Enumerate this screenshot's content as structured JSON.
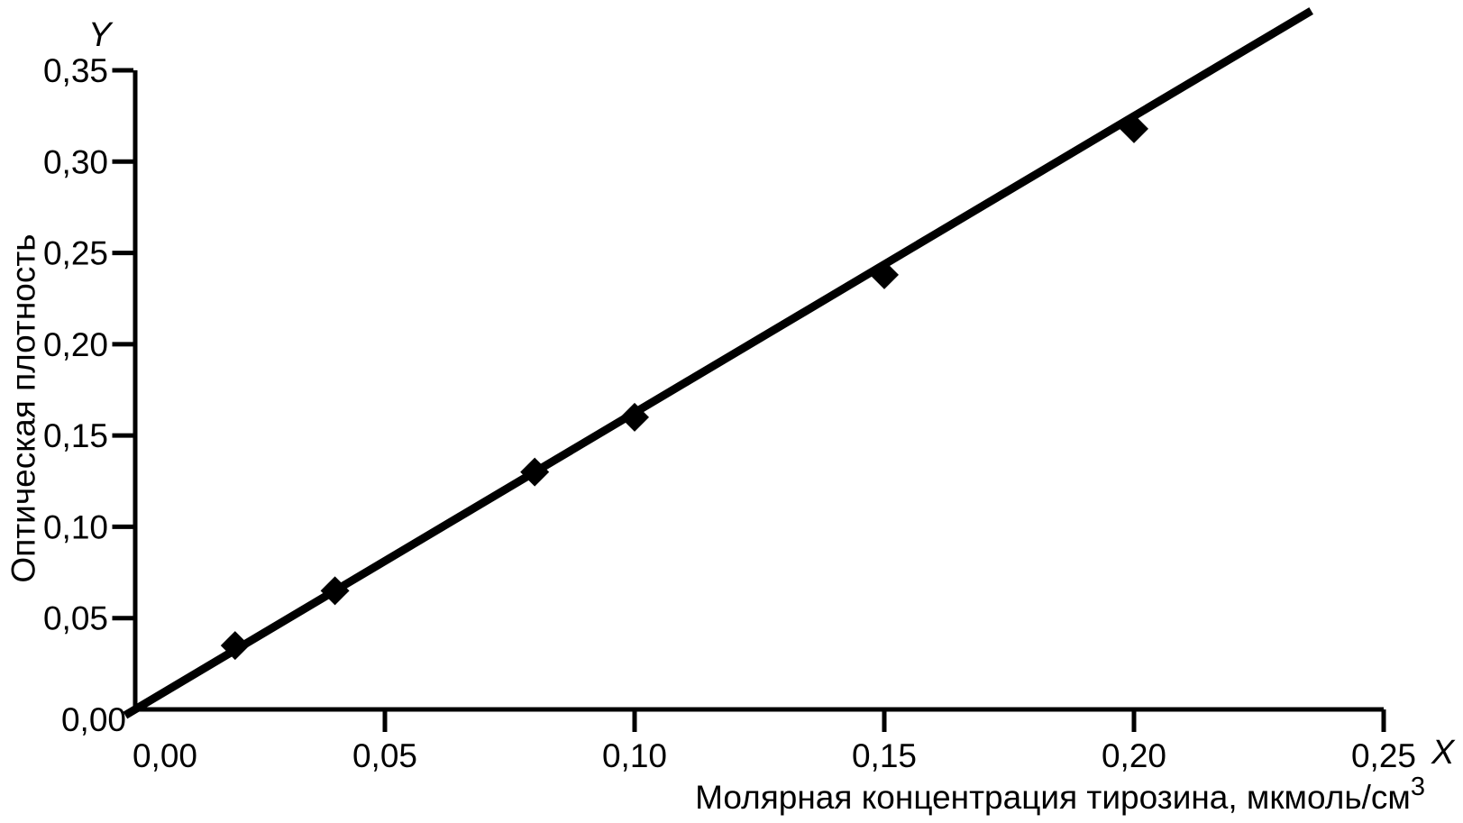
{
  "page": {
    "background_color": "#ffffff",
    "foreground_color": "#000000"
  },
  "chart_data": {
    "type": "scatter",
    "title": "",
    "xlabel_base": "Молярная концентрация тирозина, мкмоль/см",
    "xlabel_sup": "3",
    "ylabel": "Оптическая плотность",
    "x_axis_letter": "X",
    "y_axis_letter": "Y",
    "xlim": [
      0,
      0.25
    ],
    "ylim": [
      0,
      0.35
    ],
    "grid": false,
    "legend": "none",
    "decimal_separator": ",",
    "axis_color": "#000000",
    "marker_color": "#000000",
    "line_color": "#000000",
    "marker_shape": "diamond",
    "x_ticks": [
      {
        "v": 0.0,
        "label": "0,00",
        "mark": false
      },
      {
        "v": 0.05,
        "label": "0,05",
        "mark": true
      },
      {
        "v": 0.1,
        "label": "0,10",
        "mark": true
      },
      {
        "v": 0.15,
        "label": "0,15",
        "mark": true
      },
      {
        "v": 0.2,
        "label": "0,20",
        "mark": true
      },
      {
        "v": 0.25,
        "label": "0,25",
        "mark": true
      }
    ],
    "y_ticks": [
      {
        "v": 0.35,
        "label": "0,35",
        "mark": true
      },
      {
        "v": 0.3,
        "label": "0,30",
        "mark": true
      },
      {
        "v": 0.25,
        "label": "0,25",
        "mark": true
      },
      {
        "v": 0.2,
        "label": "0,20",
        "mark": true
      },
      {
        "v": 0.15,
        "label": "0,15",
        "mark": true
      },
      {
        "v": 0.1,
        "label": "0,10",
        "mark": true
      },
      {
        "v": 0.05,
        "label": "0,05",
        "mark": true
      },
      {
        "v": 0.0,
        "label": "0,00",
        "mark": false
      }
    ],
    "points": [
      {
        "x": 0.02,
        "y": 0.035
      },
      {
        "x": 0.04,
        "y": 0.065
      },
      {
        "x": 0.08,
        "y": 0.13
      },
      {
        "x": 0.1,
        "y": 0.16
      },
      {
        "x": 0.15,
        "y": 0.238
      },
      {
        "x": 0.2,
        "y": 0.318
      }
    ],
    "trendline": {
      "x1": -0.002,
      "y1": -0.0032,
      "x2": 0.2355,
      "y2": 0.3826,
      "slope_approx": 1.62
    }
  }
}
